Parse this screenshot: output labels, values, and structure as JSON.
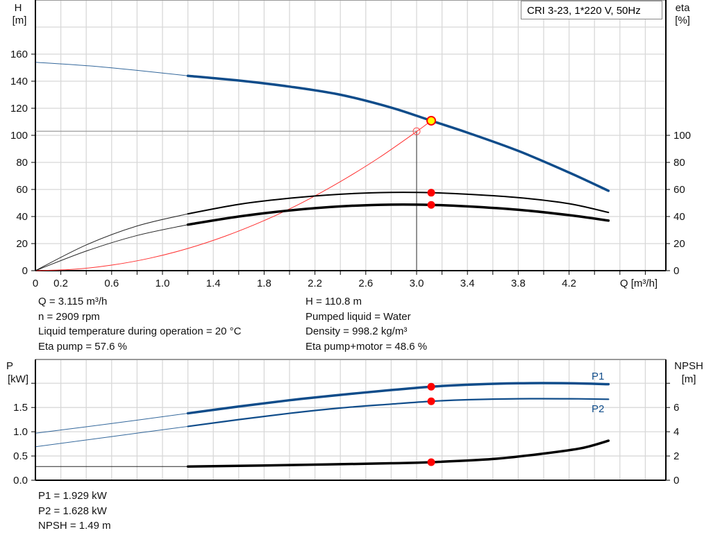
{
  "chart_data": [
    {
      "type": "line",
      "title": "CRI 3-23, 1*220 V, 50Hz",
      "xlabel": "Q [m³/h]",
      "ylabel_left": {
        "name": "H",
        "unit": "[m]"
      },
      "ylabel_right": {
        "name": "eta",
        "unit": "[%]"
      },
      "xlim": [
        0,
        4.96
      ],
      "ylim_left": [
        0,
        200
      ],
      "ylim_right": [
        0,
        200
      ],
      "x_ticks": [
        "0",
        "0.2",
        "0.6",
        "1.0",
        "1.4",
        "1.8",
        "2.2",
        "2.6",
        "3.0",
        "3.4",
        "3.8",
        "4.2"
      ],
      "y_ticks_left": [
        "0",
        "20",
        "40",
        "60",
        "80",
        "100",
        "120",
        "140",
        "160"
      ],
      "y_ticks_right": [
        "0",
        "20",
        "40",
        "60",
        "80",
        "100"
      ],
      "grid": true,
      "series": [
        {
          "id": "H",
          "axis": "left",
          "color": "#0f4c8a",
          "thin_until": 1.2,
          "x": [
            0,
            0.4,
            0.8,
            1.2,
            1.6,
            2.0,
            2.4,
            2.8,
            3.115,
            3.4,
            3.8,
            4.2,
            4.51
          ],
          "y": [
            154,
            151.5,
            148,
            144,
            140.5,
            136,
            130,
            120.5,
            110.8,
            102,
            88.5,
            72.5,
            59
          ]
        },
        {
          "id": "eta-pump",
          "axis": "right",
          "color": "#000000",
          "thin_until": 1.2,
          "x": [
            0,
            0.4,
            0.8,
            1.2,
            1.6,
            2.0,
            2.4,
            2.8,
            3.115,
            3.4,
            3.8,
            4.2,
            4.51
          ],
          "y": [
            0,
            19,
            33,
            42,
            49,
            53.5,
            56.5,
            57.8,
            57.6,
            56.5,
            54,
            49.5,
            43
          ]
        },
        {
          "id": "eta-pump-motor",
          "axis": "right",
          "color": "#000000",
          "thin_until": 1.2,
          "x": [
            0,
            0.4,
            0.8,
            1.2,
            1.6,
            2.0,
            2.4,
            2.8,
            3.115,
            3.4,
            3.8,
            4.2,
            4.51
          ],
          "y": [
            0,
            14.5,
            26,
            34,
            40,
            44.5,
            47.5,
            48.8,
            48.6,
            47.5,
            45,
            41,
            37
          ]
        },
        {
          "id": "system-curve",
          "axis": "left",
          "color": "#ff3030",
          "x": [
            0,
            0.3,
            0.6,
            0.9,
            1.2,
            1.5,
            1.8,
            2.1,
            2.4,
            2.7,
            3.0,
            3.115
          ],
          "y": [
            0,
            1.0,
            4.1,
            9.2,
            16.4,
            25.7,
            37.0,
            50.3,
            65.8,
            83.2,
            102.8,
            110.8
          ]
        }
      ],
      "duty_point": {
        "Q": 3.115,
        "H": 110.8,
        "eta_pump": 57.6,
        "eta_total": 48.6
      },
      "required_point": {
        "Q": 3.0,
        "H": 103
      }
    },
    {
      "type": "line",
      "ylabel_left": {
        "name": "P",
        "unit": "[kW]"
      },
      "ylabel_right": {
        "name": "NPSH",
        "unit": "[m]"
      },
      "xlim": [
        0,
        4.96
      ],
      "ylim_left": [
        0,
        2.49
      ],
      "ylim_right": [
        0,
        9.96
      ],
      "y_ticks_left": [
        "0.0",
        "0.5",
        "1.0",
        "1.5"
      ],
      "y_ticks_right": [
        "0",
        "2",
        "4",
        "6"
      ],
      "grid": true,
      "series": [
        {
          "id": "P1",
          "name": "P1",
          "axis": "left",
          "color": "#0f4c8a",
          "thin_until": 1.2,
          "x": [
            0,
            0.6,
            1.2,
            1.6,
            2.0,
            2.4,
            2.8,
            3.115,
            3.4,
            3.8,
            4.2,
            4.51
          ],
          "y": [
            0.97,
            1.17,
            1.38,
            1.52,
            1.65,
            1.76,
            1.86,
            1.929,
            1.97,
            2.0,
            2.0,
            1.98
          ]
        },
        {
          "id": "P2",
          "name": "P2",
          "axis": "left",
          "color": "#0f4c8a",
          "thin_until": 1.2,
          "x": [
            0,
            0.6,
            1.2,
            1.6,
            2.0,
            2.4,
            2.8,
            3.115,
            3.4,
            3.8,
            4.2,
            4.51
          ],
          "y": [
            0.69,
            0.9,
            1.11,
            1.25,
            1.38,
            1.49,
            1.57,
            1.628,
            1.66,
            1.68,
            1.68,
            1.67
          ]
        },
        {
          "id": "NPSH",
          "axis": "right",
          "color": "#000000",
          "thin_until": 1.2,
          "x": [
            0,
            1.2,
            2.0,
            2.8,
            3.115,
            3.6,
            4.0,
            4.3,
            4.51
          ],
          "y": [
            1.13,
            1.13,
            1.25,
            1.4,
            1.49,
            1.75,
            2.2,
            2.65,
            3.26
          ]
        }
      ],
      "duty_point": {
        "Q": 3.115,
        "P1": 1.929,
        "P2": 1.628,
        "NPSH": 1.49
      }
    }
  ],
  "legend_box": "CRI 3-23, 1*220 V, 50Hz",
  "info_top_left": [
    "Q = 3.115 m³/h",
    "n = 2909 rpm",
    "Liquid temperature during operation = 20 °C",
    "Eta pump = 57.6 %"
  ],
  "info_top_right": [
    "H = 110.8 m",
    "Pumped liquid = Water",
    "Density = 998.2 kg/m³",
    "Eta pump+motor = 48.6 %"
  ],
  "info_bottom": [
    "P1 = 1.929 kW",
    "P2 = 1.628 kW",
    "NPSH = 1.49 m"
  ],
  "colors": {
    "grid": "#d8d8d8",
    "blue": "#0f4c8a",
    "marker": "#ff0000",
    "duty_marker_fill": "#ffff00"
  }
}
